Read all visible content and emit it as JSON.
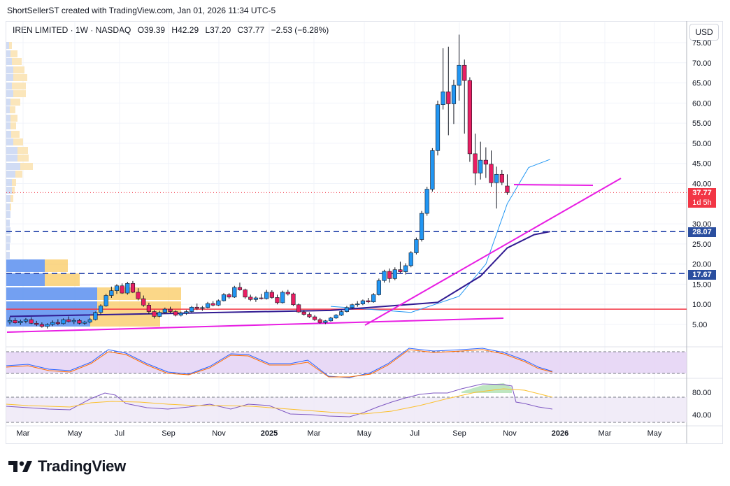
{
  "header": {
    "caption": "ShortSellerST created with TradingView.com, Jan 01, 2026 11:34 UTC-5"
  },
  "legend": {
    "symbol": "IREN LIMITED · 1W · NASDAQ",
    "open": "O39.39",
    "high": "H42.29",
    "low": "L37.20",
    "close": "C37.77",
    "change": "−2.53 (−6.28%)"
  },
  "currency_label": "USD",
  "price_axis_ticks": [
    "75.00",
    "70.00",
    "65.00",
    "60.00",
    "55.00",
    "50.00",
    "45.00",
    "40.00",
    "35.00",
    "30.00",
    "25.00",
    "20.00",
    "15.00",
    "10.00",
    "5.00"
  ],
  "price_tags": {
    "last_price": "37.77",
    "countdown": "1d 5h",
    "level_upper": "28.07",
    "level_lower": "17.67"
  },
  "time_axis_labels": [
    "Mar",
    "May",
    "Jul",
    "Sep",
    "Nov",
    "2025",
    "Mar",
    "May",
    "Jul",
    "Sep",
    "Nov",
    "2026",
    "Mar",
    "May"
  ],
  "osc_axis_ticks": [
    "80.00",
    "40.00"
  ],
  "footer": {
    "brand": "TradingView"
  },
  "colors": {
    "up": "#2196f3",
    "down": "#e91e63",
    "ema_fast": "#2196f3",
    "ema_slow": "#311b92",
    "trend": "#e81ee3",
    "level_line": "#1e3ea8",
    "support": "#f23645",
    "rsi": "#7e57c2",
    "rsi_ma": "#fbc02d"
  },
  "chart_data": {
    "type": "candlestick",
    "title": "IREN LIMITED · 1W · NASDAQ",
    "xlabel": "",
    "ylabel": "",
    "ylim": [
      0,
      78
    ],
    "levels": [
      28.07,
      17.67,
      8.8
    ],
    "series": [
      {
        "name": "price",
        "candles": [
          [
            5.6,
            6.8,
            5.0,
            6.0
          ],
          [
            6.0,
            6.6,
            5.2,
            5.4
          ],
          [
            5.4,
            6.2,
            4.9,
            5.8
          ],
          [
            5.8,
            6.6,
            5.3,
            6.2
          ],
          [
            6.2,
            6.8,
            5.1,
            5.3
          ],
          [
            5.3,
            5.9,
            4.6,
            5.0
          ],
          [
            5.0,
            5.5,
            4.2,
            4.5
          ],
          [
            4.5,
            5.3,
            4.0,
            5.0
          ],
          [
            5.0,
            6.0,
            4.6,
            5.5
          ],
          [
            5.5,
            6.3,
            4.8,
            5.2
          ],
          [
            5.2,
            6.5,
            5.0,
            6.2
          ],
          [
            6.2,
            7.0,
            5.5,
            5.7
          ],
          [
            5.7,
            6.5,
            5.1,
            6.0
          ],
          [
            6.0,
            6.4,
            5.0,
            5.3
          ],
          [
            5.3,
            5.9,
            4.9,
            5.6
          ],
          [
            5.6,
            6.6,
            5.3,
            6.2
          ],
          [
            6.2,
            8.2,
            6.0,
            8.0
          ],
          [
            8.0,
            10.0,
            7.5,
            9.6
          ],
          [
            9.6,
            12.6,
            9.4,
            12.2
          ],
          [
            12.2,
            14.4,
            11.6,
            13.4
          ],
          [
            13.4,
            15.0,
            12.6,
            14.6
          ],
          [
            14.6,
            15.2,
            12.6,
            12.8
          ],
          [
            12.8,
            15.6,
            12.4,
            15.2
          ],
          [
            15.2,
            15.8,
            12.8,
            13.0
          ],
          [
            13.0,
            14.0,
            11.0,
            11.4
          ],
          [
            11.4,
            12.2,
            9.4,
            9.8
          ],
          [
            9.8,
            10.4,
            7.6,
            8.2
          ],
          [
            8.2,
            8.6,
            6.5,
            7.0
          ],
          [
            7.0,
            8.4,
            6.8,
            8.0
          ],
          [
            8.0,
            9.2,
            7.7,
            8.8
          ],
          [
            8.8,
            9.4,
            7.8,
            8.2
          ],
          [
            8.2,
            8.5,
            7.0,
            7.3
          ],
          [
            7.3,
            8.2,
            7.0,
            7.8
          ],
          [
            7.8,
            8.6,
            7.4,
            8.2
          ],
          [
            8.2,
            9.6,
            8.0,
            9.3
          ],
          [
            9.3,
            10.2,
            8.6,
            9.0
          ],
          [
            9.0,
            9.6,
            8.4,
            9.2
          ],
          [
            9.2,
            10.6,
            9.0,
            10.2
          ],
          [
            10.2,
            10.8,
            9.5,
            9.8
          ],
          [
            9.8,
            11.2,
            9.6,
            10.9
          ],
          [
            10.9,
            12.8,
            10.7,
            12.4
          ],
          [
            12.4,
            12.8,
            11.4,
            11.8
          ],
          [
            11.8,
            14.6,
            11.6,
            14.2
          ],
          [
            14.2,
            15.4,
            13.4,
            13.6
          ],
          [
            13.6,
            13.9,
            11.4,
            11.8
          ],
          [
            11.8,
            12.4,
            10.8,
            11.2
          ],
          [
            11.2,
            12.0,
            10.6,
            11.6
          ],
          [
            11.6,
            12.6,
            11.2,
            11.4
          ],
          [
            11.4,
            13.6,
            11.2,
            13.0
          ],
          [
            13.0,
            13.5,
            11.4,
            11.7
          ],
          [
            11.7,
            12.4,
            10.0,
            10.4
          ],
          [
            10.4,
            13.4,
            10.2,
            13.0
          ],
          [
            13.0,
            13.6,
            12.2,
            12.6
          ],
          [
            12.6,
            12.9,
            9.6,
            9.9
          ],
          [
            9.9,
            10.2,
            7.9,
            8.1
          ],
          [
            8.1,
            8.6,
            7.2,
            7.5
          ],
          [
            7.5,
            8.0,
            6.6,
            6.9
          ],
          [
            6.9,
            7.3,
            5.9,
            6.2
          ],
          [
            6.2,
            6.6,
            5.2,
            5.5
          ],
          [
            5.5,
            6.1,
            5.1,
            5.9
          ],
          [
            5.9,
            6.9,
            5.7,
            6.6
          ],
          [
            6.6,
            7.6,
            6.4,
            7.3
          ],
          [
            7.3,
            8.5,
            7.1,
            8.2
          ],
          [
            8.2,
            9.6,
            8.0,
            9.2
          ],
          [
            9.2,
            10.2,
            8.8,
            9.9
          ],
          [
            9.9,
            10.8,
            9.4,
            10.1
          ],
          [
            10.1,
            11.2,
            9.8,
            10.9
          ],
          [
            10.9,
            11.6,
            10.3,
            10.6
          ],
          [
            10.6,
            12.8,
            10.4,
            12.4
          ],
          [
            12.4,
            16.4,
            12.2,
            15.9
          ],
          [
            15.9,
            18.6,
            15.4,
            18.2
          ],
          [
            18.2,
            18.9,
            15.4,
            16.4
          ],
          [
            16.4,
            19.2,
            16.0,
            18.6
          ],
          [
            18.6,
            20.6,
            17.8,
            18.1
          ],
          [
            18.1,
            20.2,
            17.4,
            19.6
          ],
          [
            19.6,
            23.2,
            19.2,
            22.8
          ],
          [
            22.8,
            26.6,
            22.4,
            26.1
          ],
          [
            26.1,
            33.2,
            25.6,
            32.6
          ],
          [
            32.6,
            39.2,
            32.0,
            38.6
          ],
          [
            38.6,
            48.8,
            38.0,
            48.2
          ],
          [
            48.2,
            60.6,
            47.0,
            59.6
          ],
          [
            59.6,
            73.6,
            58.4,
            62.8
          ],
          [
            62.8,
            74.0,
            52.0,
            59.8
          ],
          [
            59.8,
            65.8,
            54.8,
            64.4
          ],
          [
            64.4,
            77.0,
            60.6,
            69.4
          ],
          [
            69.4,
            70.8,
            52.4,
            65.6
          ],
          [
            65.6,
            66.4,
            45.4,
            47.4
          ],
          [
            47.4,
            52.4,
            39.6,
            42.6
          ],
          [
            42.6,
            50.4,
            41.0,
            45.8
          ],
          [
            45.8,
            49.0,
            41.4,
            44.8
          ],
          [
            44.8,
            48.2,
            39.2,
            40.2
          ],
          [
            40.2,
            44.2,
            33.8,
            42.3
          ],
          [
            42.3,
            43.4,
            39.6,
            40.3
          ],
          [
            39.39,
            42.29,
            37.2,
            37.77
          ]
        ]
      },
      {
        "name": "ema_fast",
        "points": [
          [
            60,
            9.5
          ],
          [
            75,
            8.0
          ],
          [
            84,
            12.0
          ],
          [
            89,
            20.0
          ],
          [
            93,
            35.0
          ],
          [
            97,
            44.0
          ],
          [
            101,
            46.0
          ]
        ]
      },
      {
        "name": "ema_slow",
        "points": [
          [
            0,
            7.0
          ],
          [
            60,
            8.5
          ],
          [
            80,
            10.5
          ],
          [
            88,
            17.0
          ],
          [
            93,
            24.0
          ],
          [
            98,
            27.3
          ],
          [
            101,
            28.07
          ]
        ]
      }
    ],
    "rsi": {
      "levels": [
        80,
        40
      ]
    }
  }
}
